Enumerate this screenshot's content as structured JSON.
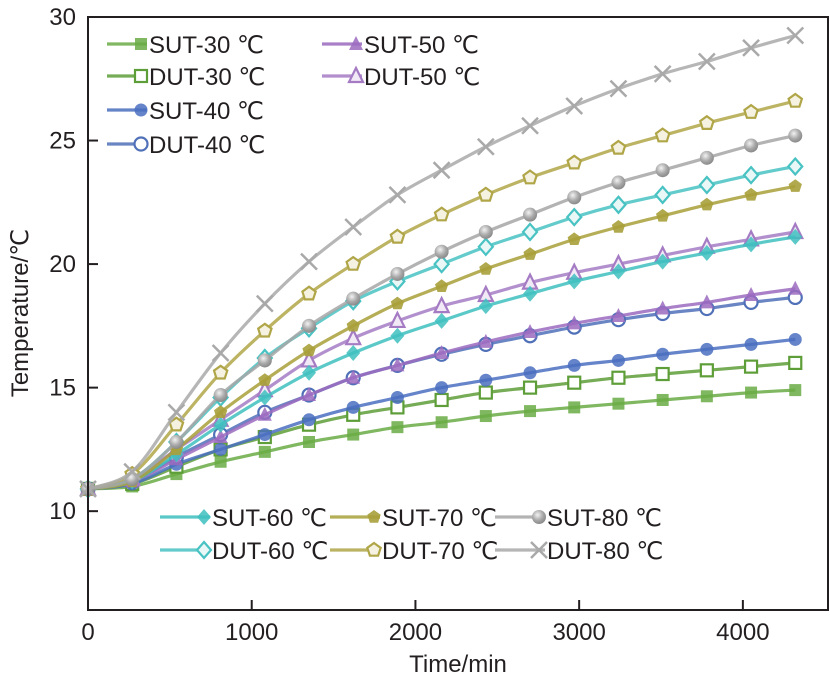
{
  "chart_data": {
    "type": "line",
    "title": "",
    "xlabel": "Time/min",
    "ylabel": "Temperature/℃",
    "xlim": [
      0,
      4520
    ],
    "ylim": [
      6,
      30
    ],
    "xticks": [
      0,
      1000,
      2000,
      3000,
      4000
    ],
    "yticks": [
      10,
      15,
      20,
      25,
      30
    ],
    "xtick_labels": [
      "0",
      "1000",
      "2000",
      "3000",
      "4000"
    ],
    "ytick_labels": [
      "10",
      "15",
      "20",
      "25",
      "30"
    ],
    "grid": false,
    "legend": [
      {
        "position": "top-left",
        "entries": [
          "SUT-30 ℃",
          "DUT-30 ℃",
          "SUT-40 ℃",
          "DUT-40 ℃",
          "SUT-50 ℃",
          "DUT-50 ℃"
        ]
      },
      {
        "position": "bottom-right",
        "entries": [
          "SUT-60 ℃",
          "SUT-70 ℃",
          "SUT-80 ℃",
          "DUT-60 ℃",
          "DUT-70 ℃",
          "DUT-80 ℃"
        ]
      }
    ],
    "x": [
      0,
      270,
      540,
      810,
      1080,
      1350,
      1620,
      1890,
      2160,
      2430,
      2700,
      2970,
      3240,
      3510,
      3780,
      4050,
      4320
    ],
    "series": [
      {
        "name": "SUT-30 ℃",
        "color": "#6aab45",
        "marker": "square-filled",
        "values": [
          10.9,
          11.0,
          11.5,
          12.0,
          12.4,
          12.8,
          13.1,
          13.4,
          13.6,
          13.85,
          14.05,
          14.2,
          14.35,
          14.5,
          14.65,
          14.8,
          14.9
        ]
      },
      {
        "name": "DUT-30 ℃",
        "color": "#5e9e38",
        "marker": "square-open",
        "values": [
          10.9,
          11.1,
          11.8,
          12.5,
          13.0,
          13.5,
          13.9,
          14.2,
          14.5,
          14.8,
          15.0,
          15.2,
          15.4,
          15.55,
          15.7,
          15.85,
          16.0
        ]
      },
      {
        "name": "SUT-40 ℃",
        "color": "#4a6fbf",
        "marker": "circle-filled",
        "values": [
          10.9,
          11.1,
          11.9,
          12.5,
          13.1,
          13.7,
          14.2,
          14.6,
          15.0,
          15.3,
          15.6,
          15.9,
          16.1,
          16.35,
          16.55,
          16.75,
          16.95
        ]
      },
      {
        "name": "DUT-40 ℃",
        "color": "#5070b8",
        "marker": "circle-open",
        "values": [
          10.9,
          11.2,
          12.2,
          13.1,
          14.0,
          14.7,
          15.4,
          15.9,
          16.35,
          16.75,
          17.1,
          17.45,
          17.75,
          18.0,
          18.2,
          18.45,
          18.65
        ]
      },
      {
        "name": "SUT-50 ℃",
        "color": "#9b6bbf",
        "marker": "triangle-filled",
        "values": [
          10.9,
          11.2,
          12.1,
          13.0,
          13.9,
          14.7,
          15.4,
          15.9,
          16.4,
          16.85,
          17.25,
          17.6,
          17.9,
          18.2,
          18.45,
          18.75,
          19.0
        ]
      },
      {
        "name": "DUT-50 ℃",
        "color": "#a57bc4",
        "marker": "triangle-open",
        "values": [
          10.9,
          11.3,
          12.5,
          13.7,
          14.9,
          16.1,
          17.0,
          17.7,
          18.3,
          18.75,
          19.25,
          19.65,
          20.0,
          20.35,
          20.7,
          21.0,
          21.3
        ]
      },
      {
        "name": "SUT-60 ℃",
        "color": "#3fbfbf",
        "marker": "diamond-filled",
        "values": [
          10.9,
          11.2,
          12.3,
          13.5,
          14.6,
          15.6,
          16.4,
          17.1,
          17.7,
          18.3,
          18.8,
          19.3,
          19.7,
          20.1,
          20.45,
          20.8,
          21.1
        ]
      },
      {
        "name": "DUT-60 ℃",
        "color": "#48c2c2",
        "marker": "diamond-open",
        "values": [
          10.9,
          11.3,
          12.8,
          14.6,
          16.2,
          17.4,
          18.5,
          19.3,
          20.0,
          20.7,
          21.3,
          21.9,
          22.4,
          22.8,
          23.2,
          23.6,
          23.95
        ]
      },
      {
        "name": "SUT-70 ℃",
        "color": "#a8a03a",
        "marker": "pentagon-filled",
        "values": [
          10.9,
          11.2,
          12.5,
          14.0,
          15.3,
          16.5,
          17.5,
          18.4,
          19.1,
          19.8,
          20.4,
          21.0,
          21.5,
          21.95,
          22.4,
          22.8,
          23.15
        ]
      },
      {
        "name": "DUT-70 ℃",
        "color": "#b0a648",
        "marker": "pentagon-open",
        "values": [
          10.9,
          11.5,
          13.5,
          15.6,
          17.3,
          18.8,
          20.0,
          21.1,
          22.0,
          22.8,
          23.5,
          24.1,
          24.7,
          25.2,
          25.7,
          26.15,
          26.6
        ]
      },
      {
        "name": "SUT-80 ℃",
        "color": "#a6a6a6",
        "marker": "sphere",
        "values": [
          10.9,
          11.3,
          12.8,
          14.7,
          16.1,
          17.5,
          18.6,
          19.6,
          20.5,
          21.3,
          22.0,
          22.7,
          23.3,
          23.8,
          24.3,
          24.8,
          25.2
        ]
      },
      {
        "name": "DUT-80 ℃",
        "color": "#a9a9a9",
        "marker": "x",
        "values": [
          10.9,
          11.6,
          14.0,
          16.4,
          18.4,
          20.1,
          21.5,
          22.8,
          23.8,
          24.75,
          25.6,
          26.4,
          27.1,
          27.7,
          28.2,
          28.75,
          29.25
        ]
      }
    ]
  }
}
